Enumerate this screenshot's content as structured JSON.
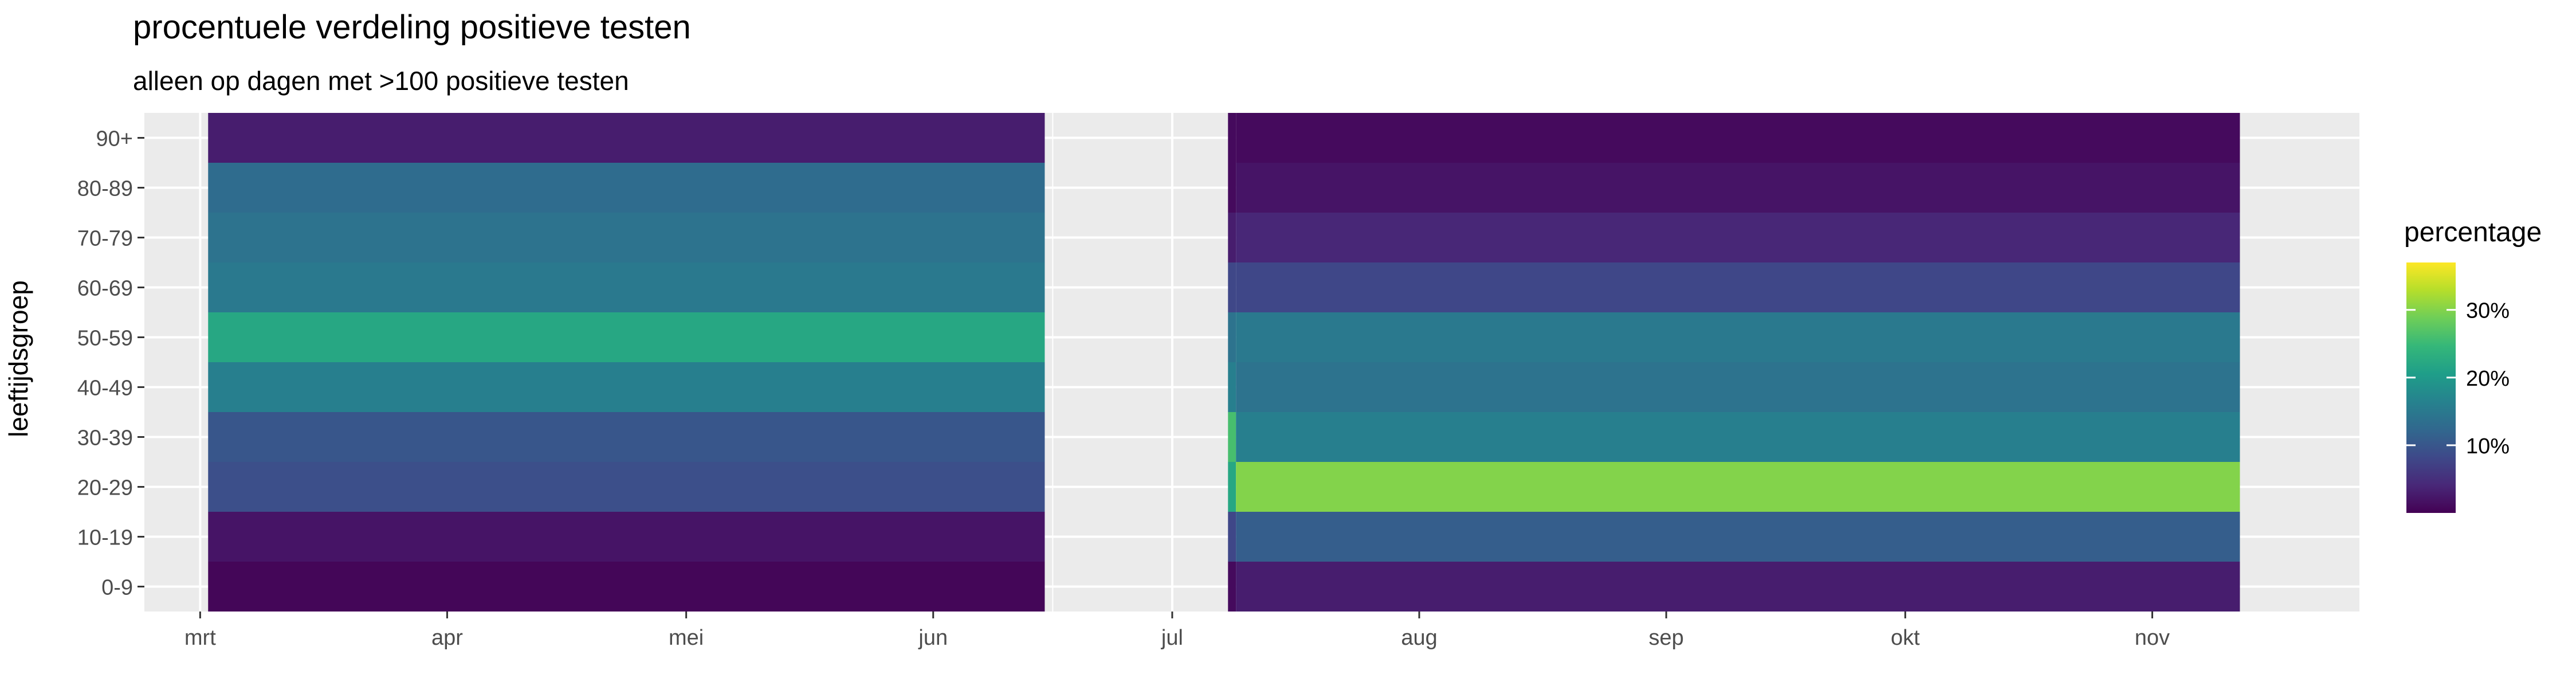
{
  "chart_data": {
    "type": "heatmap",
    "title": "procentuele verdeling positieve testen",
    "subtitle": "alleen op dagen met >100 positieve testen",
    "xlabel": "",
    "ylabel": "leeftijdsgroep",
    "x_tick_labels": [
      "mrt",
      "apr",
      "mei",
      "jun",
      "jul",
      "aug",
      "sep",
      "okt",
      "nov"
    ],
    "x_tick_dates": [
      "2020-03-01",
      "2020-04-01",
      "2020-05-01",
      "2020-06-01",
      "2020-07-01",
      "2020-08-01",
      "2020-09-01",
      "2020-10-01",
      "2020-11-01"
    ],
    "xlim": [
      "2020-02-23",
      "2020-11-27"
    ],
    "age_groups": [
      "0-9",
      "10-19",
      "20-29",
      "30-39",
      "40-49",
      "50-59",
      "60-69",
      "70-79",
      "80-89",
      "90+"
    ],
    "periods": [
      {
        "start": "2020-03-02",
        "end": "2020-06-15",
        "percentages": [
          0.5,
          2,
          9,
          10,
          16,
          22,
          15,
          14,
          13,
          3
        ]
      },
      {
        "start": "2020-07-08",
        "end": "2020-07-09",
        "percentages": [
          1,
          8,
          22,
          26,
          16,
          14,
          8,
          3,
          1,
          1
        ]
      },
      {
        "start": "2020-07-09",
        "end": "2020-11-12",
        "percentages": [
          3,
          11,
          30,
          16,
          14,
          15,
          8,
          4,
          2,
          1
        ]
      }
    ],
    "legend": {
      "title": "percentage",
      "tick_labels": [
        "10%",
        "20%",
        "30%"
      ],
      "tick_values": [
        10,
        20,
        30
      ],
      "range": [
        0,
        37
      ],
      "colors": [
        "#440154",
        "#482878",
        "#3e4989",
        "#31688e",
        "#26828e",
        "#1f9e89",
        "#35b779",
        "#6ece58",
        "#b5de2b",
        "#fde725"
      ]
    },
    "panel_background": "#ebebeb",
    "grid_color": "#ffffff",
    "legend_position": "right"
  }
}
